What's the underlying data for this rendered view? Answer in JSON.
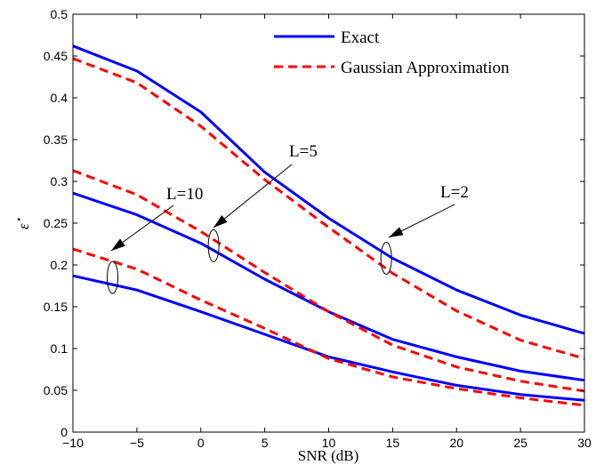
{
  "chart_data": {
    "type": "line",
    "title": "",
    "xlabel": "SNR (dB)",
    "ylabel_base": "ε",
    "ylabel_sup": "⋆",
    "xlim": [
      -10,
      30
    ],
    "ylim": [
      0,
      0.5
    ],
    "xticks": [
      -10,
      -5,
      0,
      5,
      10,
      15,
      20,
      25,
      30
    ],
    "xtick_labels": [
      "−10",
      "−5",
      "0",
      "5",
      "10",
      "15",
      "20",
      "25",
      "30"
    ],
    "yticks": [
      0,
      0.05,
      0.1,
      0.15,
      0.2,
      0.25,
      0.3,
      0.35,
      0.4,
      0.45,
      0.5
    ],
    "ytick_labels": [
      "0",
      "0.05",
      "0.1",
      "0.15",
      "0.2",
      "0.25",
      "0.3",
      "0.35",
      "0.4",
      "0.45",
      "0.5"
    ],
    "grid": false,
    "legend_position": "top-right",
    "legend": [
      {
        "label": "Exact",
        "color": "#0000ff",
        "dash": "solid"
      },
      {
        "label": "Gaussian Approximation",
        "color": "#ff0000",
        "dash": "dashed"
      }
    ],
    "x": [
      -10,
      -5,
      0,
      5,
      10,
      15,
      20,
      25,
      30
    ],
    "series": [
      {
        "group": "L=2",
        "style": "solid",
        "color": "#0000ff",
        "values": [
          0.462,
          0.432,
          0.383,
          0.311,
          0.256,
          0.208,
          0.17,
          0.14,
          0.118
        ]
      },
      {
        "group": "L=2",
        "style": "dashed",
        "color": "#ff0000",
        "values": [
          0.447,
          0.418,
          0.366,
          0.302,
          0.245,
          0.19,
          0.145,
          0.11,
          0.088
        ]
      },
      {
        "group": "L=5",
        "style": "solid",
        "color": "#0000ff",
        "values": [
          0.286,
          0.26,
          0.226,
          0.183,
          0.144,
          0.111,
          0.09,
          0.073,
          0.062
        ]
      },
      {
        "group": "L=5",
        "style": "dashed",
        "color": "#ff0000",
        "values": [
          0.313,
          0.284,
          0.24,
          0.191,
          0.144,
          0.104,
          0.078,
          0.061,
          0.049
        ]
      },
      {
        "group": "L=10",
        "style": "solid",
        "color": "#0000ff",
        "values": [
          0.187,
          0.17,
          0.144,
          0.117,
          0.09,
          0.072,
          0.056,
          0.045,
          0.038
        ]
      },
      {
        "group": "L=10",
        "style": "dashed",
        "color": "#ff0000",
        "values": [
          0.219,
          0.195,
          0.158,
          0.124,
          0.088,
          0.066,
          0.052,
          0.041,
          0.032
        ]
      }
    ],
    "annotations": [
      {
        "text": "L=2",
        "ellipse_x": 14.5,
        "ellipse_y": 0.208
      },
      {
        "text": "L=5",
        "ellipse_x": 1.0,
        "ellipse_y": 0.223
      },
      {
        "text": "L=10",
        "ellipse_x": -6.9,
        "ellipse_y": 0.185
      }
    ]
  }
}
